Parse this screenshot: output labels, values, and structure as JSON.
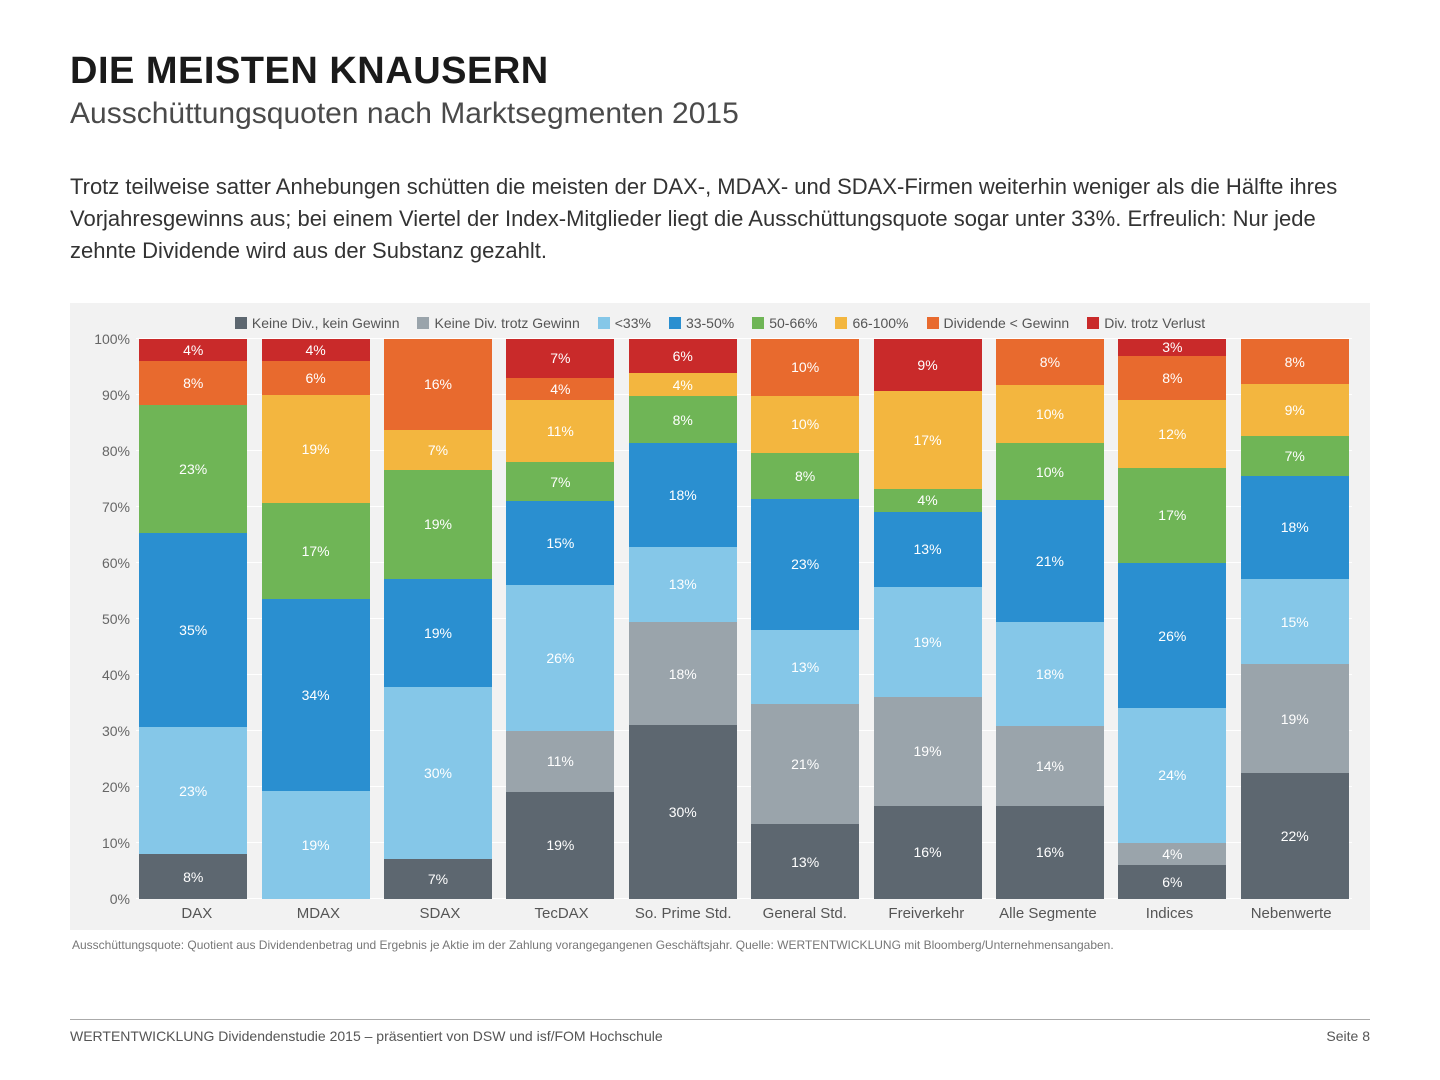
{
  "title": "DIE MEISTEN KNAUSERN",
  "subtitle": "Ausschüttungsquoten nach Marktsegmenten 2015",
  "description": "Trotz teilweise satter Anhebungen schütten die meisten der DAX-, MDAX- und SDAX-Firmen weiterhin weniger als die Hälfte ihres Vorjahresgewinns aus; bei einem Viertel der Index-Mitglieder liegt die Ausschüttungsquote sogar unter 33%. Erfreulich: Nur jede zehnte Dividende wird aus der Substanz gezahlt.",
  "caption": "Ausschüttungsquote: Quotient aus Dividendenbetrag und Ergebnis je Aktie im der Zahlung vorangegangenen Geschäftsjahr. Quelle: WERTENTWICKLUNG mit Bloomberg/Unternehmensangaben.",
  "footer_left": "WERTENTWICKLUNG Dividendenstudie 2015 – präsentiert von DSW und isf/FOM Hochschule",
  "footer_right": "Seite 8",
  "chart": {
    "type": "stacked-bar-100",
    "background_color": "#f2f2f2",
    "grid_color": "#ffffff",
    "label_fontsize": 14,
    "y_ticks": [
      "0%",
      "10%",
      "20%",
      "30%",
      "40%",
      "50%",
      "60%",
      "70%",
      "80%",
      "90%",
      "100%"
    ],
    "legend": [
      {
        "key": "no_div_no_profit",
        "label": "Keine Div., kein Gewinn",
        "color": "#5d6770"
      },
      {
        "key": "no_div_despite_profit",
        "label": "Keine Div. trotz Gewinn",
        "color": "#9aa4ab"
      },
      {
        "key": "lt33",
        "label": "<33%",
        "color": "#85c7e8"
      },
      {
        "key": "b33_50",
        "label": "33-50%",
        "color": "#2a8fd0"
      },
      {
        "key": "b50_66",
        "label": "50-66%",
        "color": "#6fb556"
      },
      {
        "key": "b66_100",
        "label": "66-100%",
        "color": "#f3b63f"
      },
      {
        "key": "div_lt_gewinn",
        "label": "Dividende < Gewinn",
        "color": "#e86a2e"
      },
      {
        "key": "div_trotz_verlust",
        "label": "Div. trotz Verlust",
        "color": "#c92a2a"
      }
    ],
    "categories": [
      "DAX",
      "MDAX",
      "SDAX",
      "TecDAX",
      "So. Prime Std.",
      "General Std.",
      "Freiverkehr",
      "Alle Segmente",
      "Indices",
      "Nebenwerte"
    ],
    "data": [
      {
        "no_div_no_profit": 8,
        "no_div_despite_profit": 0,
        "lt33": 23,
        "b33_50": 35,
        "b50_66": 23,
        "b66_100": 0,
        "div_lt_gewinn": 8,
        "div_trotz_verlust": 4
      },
      {
        "no_div_no_profit": 0,
        "no_div_despite_profit": 0,
        "lt33": 19,
        "b33_50": 34,
        "b50_66": 17,
        "b66_100": 19,
        "div_lt_gewinn": 6,
        "div_trotz_verlust": 4
      },
      {
        "no_div_no_profit": 7,
        "no_div_despite_profit": 0,
        "lt33": 30,
        "b33_50": 19,
        "b50_66": 19,
        "b66_100": 7,
        "div_lt_gewinn": 16,
        "div_trotz_verlust": 0
      },
      {
        "no_div_no_profit": 19,
        "no_div_despite_profit": 11,
        "lt33": 26,
        "b33_50": 15,
        "b50_66": 7,
        "b66_100": 11,
        "div_lt_gewinn": 4,
        "div_trotz_verlust": 7
      },
      {
        "no_div_no_profit": 30,
        "no_div_despite_profit": 18,
        "lt33": 13,
        "b33_50": 18,
        "b50_66": 8,
        "b66_100": 4,
        "div_lt_gewinn": 0,
        "div_trotz_verlust": 6
      },
      {
        "no_div_no_profit": 13,
        "no_div_despite_profit": 21,
        "lt33": 13,
        "b33_50": 23,
        "b50_66": 8,
        "b66_100": 10,
        "div_lt_gewinn": 10,
        "div_trotz_verlust": 0
      },
      {
        "no_div_no_profit": 16,
        "no_div_despite_profit": 19,
        "lt33": 19,
        "b33_50": 13,
        "b50_66": 4,
        "b66_100": 17,
        "div_lt_gewinn": 0,
        "div_trotz_verlust": 9
      },
      {
        "no_div_no_profit": 16,
        "no_div_despite_profit": 14,
        "lt33": 18,
        "b33_50": 21,
        "b50_66": 10,
        "b66_100": 10,
        "div_lt_gewinn": 8,
        "div_trotz_verlust": 0
      },
      {
        "no_div_no_profit": 6,
        "no_div_despite_profit": 4,
        "lt33": 24,
        "b33_50": 26,
        "b50_66": 17,
        "b66_100": 12,
        "div_lt_gewinn": 8,
        "div_trotz_verlust": 3
      },
      {
        "no_div_no_profit": 22,
        "no_div_despite_profit": 19,
        "lt33": 15,
        "b33_50": 18,
        "b50_66": 7,
        "b66_100": 9,
        "div_lt_gewinn": 8,
        "div_trotz_verlust": 0
      }
    ],
    "hide_labels_below": 3
  }
}
